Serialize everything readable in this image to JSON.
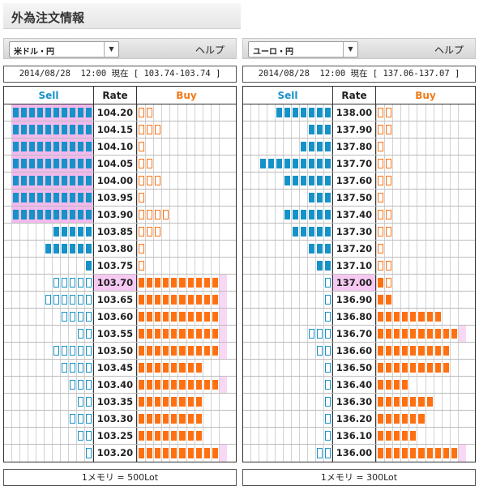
{
  "page": {
    "title": "外為注文情報"
  },
  "colors": {
    "sell": "#1592c8",
    "buy": "#ff7011",
    "current_rate_bg": "#f6c9f2"
  },
  "panels": [
    {
      "pair": "米ドル・円",
      "help": "ヘルプ",
      "info": "2014/08/28  12:00 現在 [ 103.74-103.74 ]",
      "headers": {
        "sell": "Sell",
        "rate": "Rate",
        "buy": "Buy"
      },
      "footer": "1メモリ = 500Lot",
      "current_rate": "103.70",
      "rows": [
        {
          "rate": "104.20",
          "sell": 10,
          "sell_style": "solid",
          "buy": 2,
          "buy_style": "outline"
        },
        {
          "rate": "104.15",
          "sell": 10,
          "sell_style": "solid",
          "buy": 3,
          "buy_style": "outline"
        },
        {
          "rate": "104.10",
          "sell": 10,
          "sell_style": "solid",
          "buy": 1,
          "buy_style": "outline"
        },
        {
          "rate": "104.05",
          "sell": 10,
          "sell_style": "solid",
          "buy": 2,
          "buy_style": "outline"
        },
        {
          "rate": "104.00",
          "sell": 10,
          "sell_style": "solid",
          "buy": 3,
          "buy_style": "outline"
        },
        {
          "rate": "103.95",
          "sell": 10,
          "sell_style": "solid",
          "buy": 1,
          "buy_style": "outline"
        },
        {
          "rate": "103.90",
          "sell": 10,
          "sell_style": "solid",
          "buy": 4,
          "buy_style": "outline"
        },
        {
          "rate": "103.85",
          "sell": 5,
          "sell_style": "solid",
          "buy": 3,
          "buy_style": "outline"
        },
        {
          "rate": "103.80",
          "sell": 6,
          "sell_style": "solid",
          "buy": 1,
          "buy_style": "outline"
        },
        {
          "rate": "103.75",
          "sell": 1,
          "sell_style": "solid",
          "buy": 1,
          "buy_style": "outline"
        },
        {
          "rate": "103.70",
          "sell": 5,
          "sell_style": "outline",
          "buy": 10,
          "buy_style": "solid"
        },
        {
          "rate": "103.65",
          "sell": 6,
          "sell_style": "outline",
          "buy": 10,
          "buy_style": "solid"
        },
        {
          "rate": "103.60",
          "sell": 4,
          "sell_style": "outline",
          "buy": 10,
          "buy_style": "solid"
        },
        {
          "rate": "103.55",
          "sell": 2,
          "sell_style": "outline",
          "buy": 10,
          "buy_style": "solid"
        },
        {
          "rate": "103.50",
          "sell": 5,
          "sell_style": "outline",
          "buy": 10,
          "buy_style": "solid"
        },
        {
          "rate": "103.45",
          "sell": 4,
          "sell_style": "outline",
          "buy": 8,
          "buy_style": "solid"
        },
        {
          "rate": "103.40",
          "sell": 3,
          "sell_style": "outline",
          "buy": 10,
          "buy_style": "solid"
        },
        {
          "rate": "103.35",
          "sell": 2,
          "sell_style": "outline",
          "buy": 8,
          "buy_style": "solid"
        },
        {
          "rate": "103.30",
          "sell": 3,
          "sell_style": "outline",
          "buy": 8,
          "buy_style": "solid"
        },
        {
          "rate": "103.25",
          "sell": 2,
          "sell_style": "outline",
          "buy": 8,
          "buy_style": "solid"
        },
        {
          "rate": "103.20",
          "sell": 1,
          "sell_style": "outline",
          "buy": 10,
          "buy_style": "solid"
        }
      ]
    },
    {
      "pair": "ユーロ・円",
      "help": "ヘルプ",
      "info": "2014/08/28  12:00 現在 [ 137.06-137.07 ]",
      "headers": {
        "sell": "Sell",
        "rate": "Rate",
        "buy": "Buy"
      },
      "footer": "1メモリ = 300Lot",
      "current_rate": "137.00",
      "rows": [
        {
          "rate": "138.00",
          "sell": 7,
          "sell_style": "solid",
          "buy": 2,
          "buy_style": "outline"
        },
        {
          "rate": "137.90",
          "sell": 3,
          "sell_style": "solid",
          "buy": 2,
          "buy_style": "outline"
        },
        {
          "rate": "137.80",
          "sell": 4,
          "sell_style": "solid",
          "buy": 1,
          "buy_style": "outline"
        },
        {
          "rate": "137.70",
          "sell": 9,
          "sell_style": "solid",
          "buy": 2,
          "buy_style": "outline"
        },
        {
          "rate": "137.60",
          "sell": 6,
          "sell_style": "solid",
          "buy": 2,
          "buy_style": "outline"
        },
        {
          "rate": "137.50",
          "sell": 3,
          "sell_style": "solid",
          "buy": 1,
          "buy_style": "outline"
        },
        {
          "rate": "137.40",
          "sell": 6,
          "sell_style": "solid",
          "buy": 2,
          "buy_style": "outline"
        },
        {
          "rate": "137.30",
          "sell": 5,
          "sell_style": "solid",
          "buy": 2,
          "buy_style": "outline"
        },
        {
          "rate": "137.20",
          "sell": 3,
          "sell_style": "solid",
          "buy": 1,
          "buy_style": "outline"
        },
        {
          "rate": "137.10",
          "sell": 2,
          "sell_style": "solid",
          "buy": 2,
          "buy_style": "outline"
        },
        {
          "rate": "137.00",
          "sell": 1,
          "sell_style": "outline",
          "buy": 2,
          "buy_style": "mixed"
        },
        {
          "rate": "136.90",
          "sell": 1,
          "sell_style": "outline",
          "buy": 2,
          "buy_style": "solid"
        },
        {
          "rate": "136.80",
          "sell": 1,
          "sell_style": "outline",
          "buy": 8,
          "buy_style": "solid"
        },
        {
          "rate": "136.70",
          "sell": 3,
          "sell_style": "outline",
          "buy": 10,
          "buy_style": "solid"
        },
        {
          "rate": "136.60",
          "sell": 2,
          "sell_style": "outline",
          "buy": 9,
          "buy_style": "solid"
        },
        {
          "rate": "136.50",
          "sell": 1,
          "sell_style": "outline",
          "buy": 9,
          "buy_style": "solid"
        },
        {
          "rate": "136.40",
          "sell": 1,
          "sell_style": "outline",
          "buy": 4,
          "buy_style": "solid"
        },
        {
          "rate": "136.30",
          "sell": 1,
          "sell_style": "outline",
          "buy": 7,
          "buy_style": "solid"
        },
        {
          "rate": "136.20",
          "sell": 1,
          "sell_style": "outline",
          "buy": 6,
          "buy_style": "solid"
        },
        {
          "rate": "136.10",
          "sell": 1,
          "sell_style": "outline",
          "buy": 5,
          "buy_style": "solid"
        },
        {
          "rate": "136.00",
          "sell": 2,
          "sell_style": "outline",
          "buy": 10,
          "buy_style": "solid"
        }
      ]
    }
  ]
}
